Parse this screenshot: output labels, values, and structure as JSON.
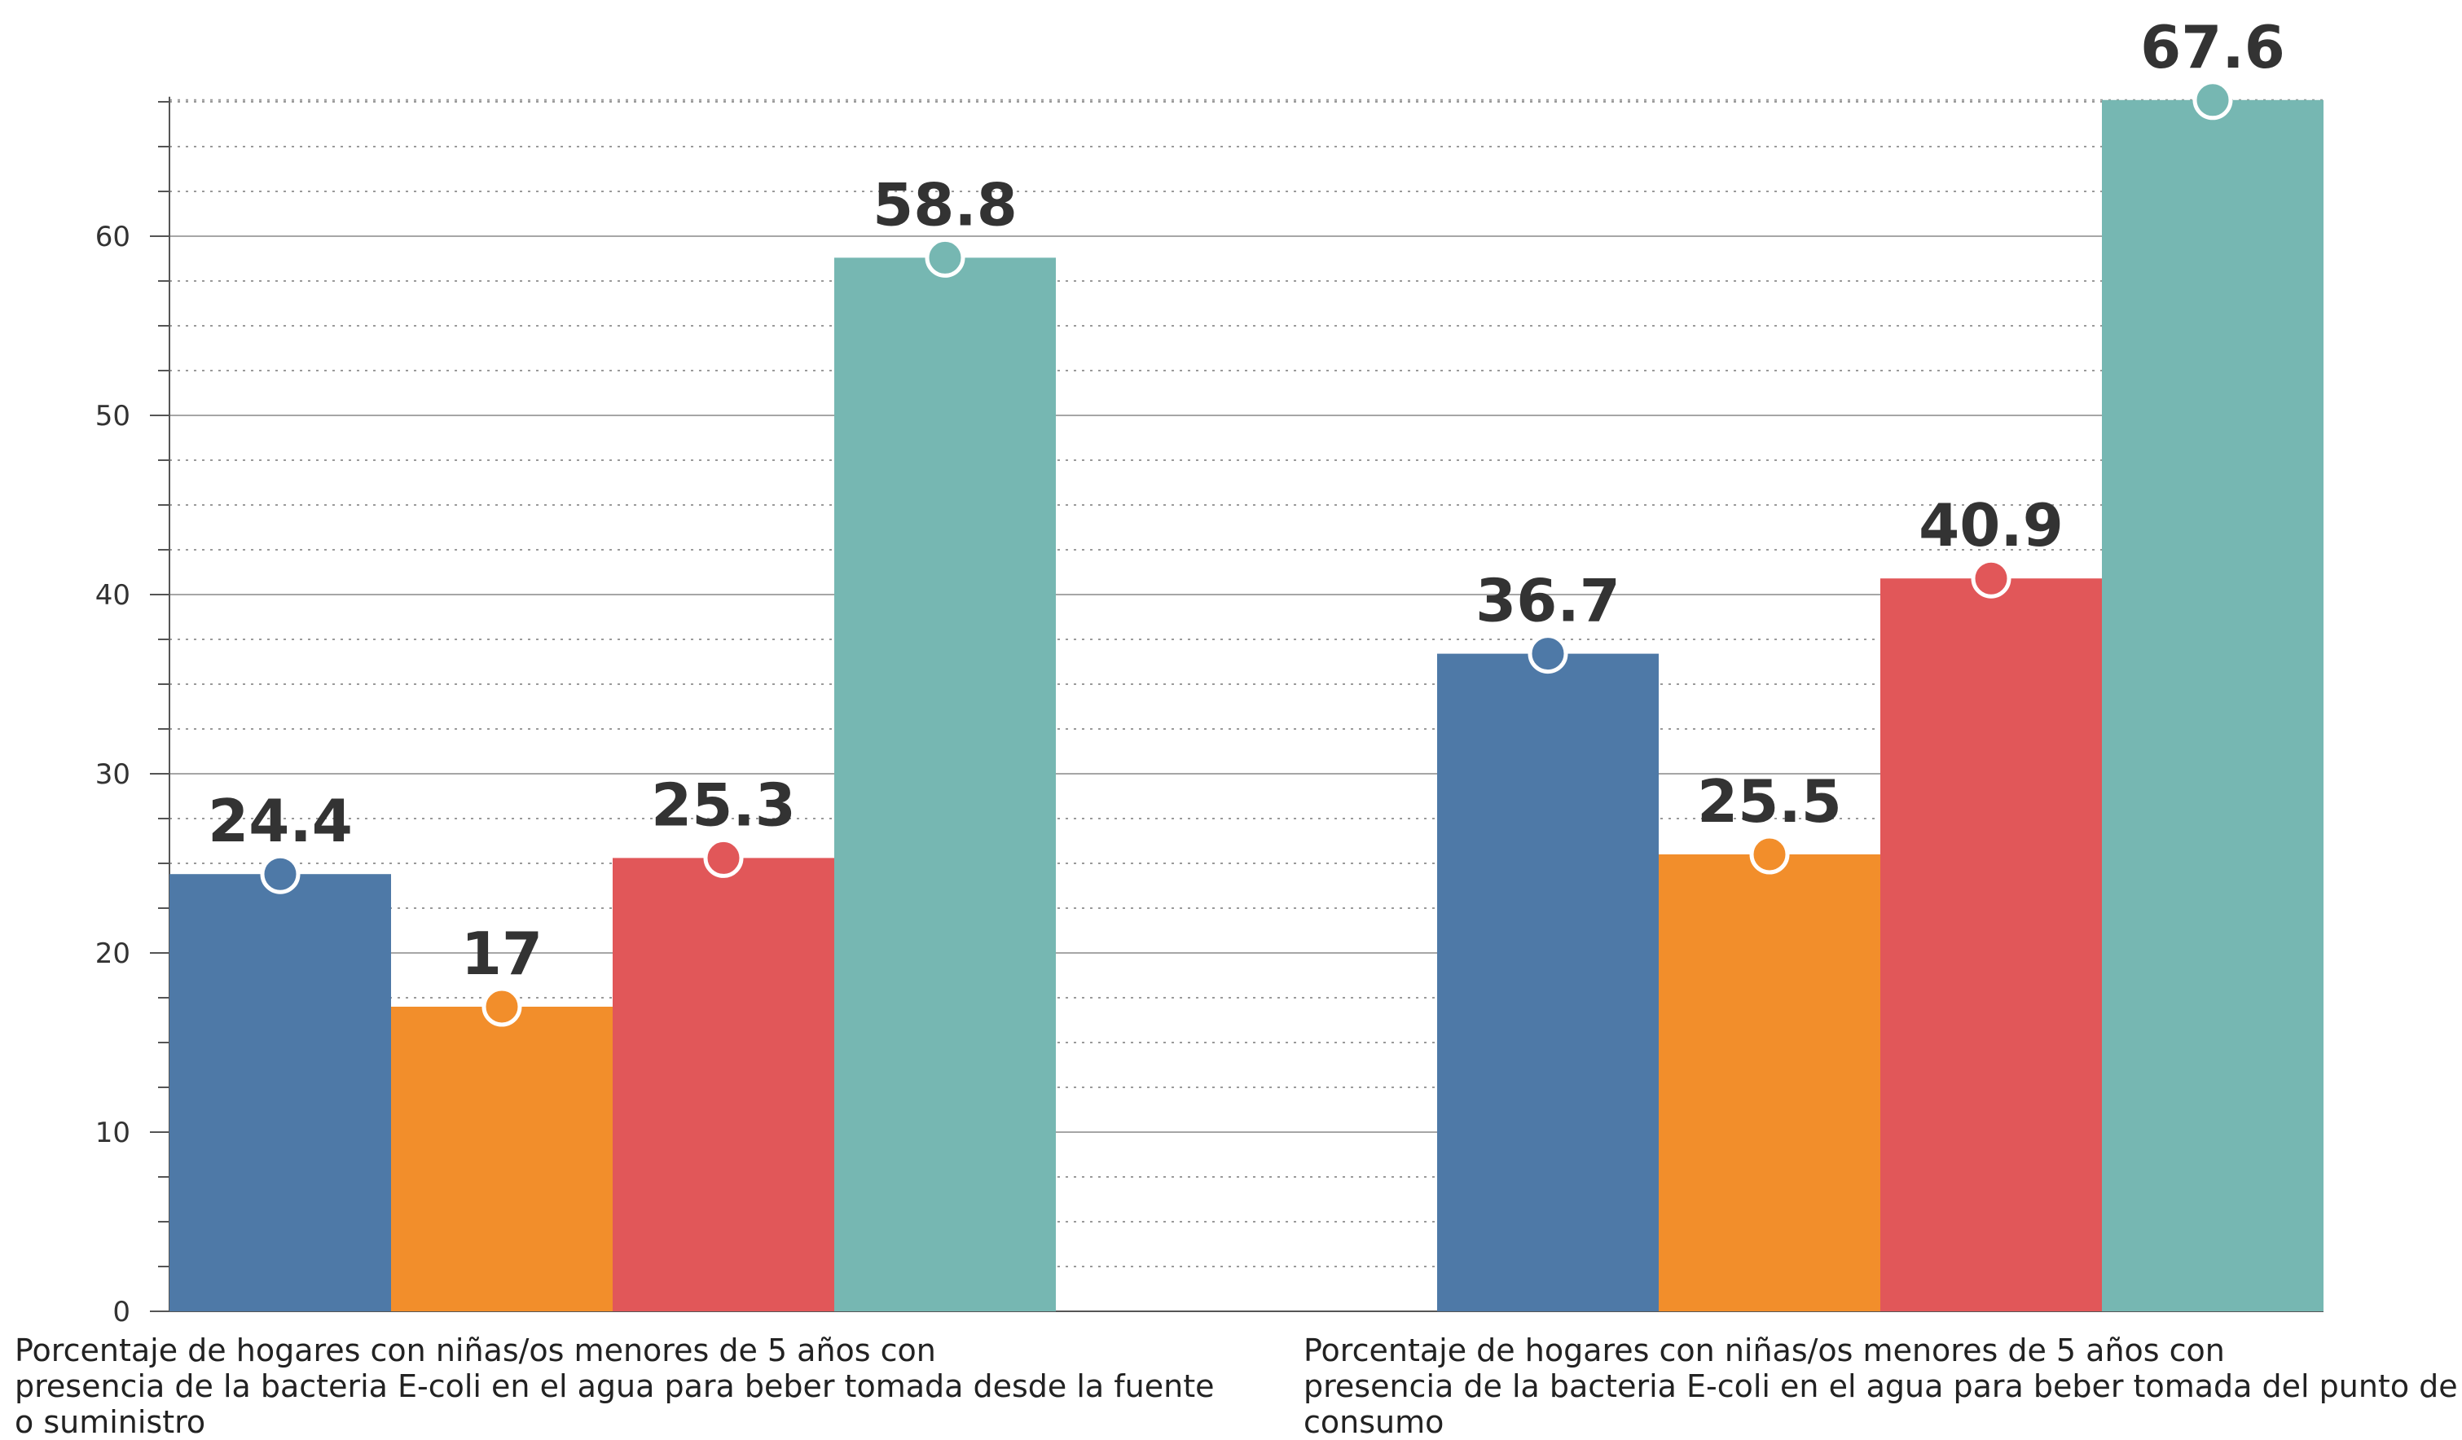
{
  "chart_data": {
    "type": "bar",
    "categories": [
      "Porcentaje de hogares con niñas/os menores de 5 años con\n presencia de la bacteria E-coli en el agua para beber tomada desde la fuente\n o suministro",
      "Porcentaje de hogares con niñas/os menores de 5 años con\n presencia de la bacteria E-coli en el agua para beber tomada del punto de\n consumo"
    ],
    "series": [
      {
        "color": "#4e79a7",
        "values": [
          24.4,
          36.7
        ],
        "labels": [
          "24.4",
          "36.7"
        ]
      },
      {
        "color": "#f28e2b",
        "values": [
          17,
          25.5
        ],
        "labels": [
          "17",
          "25.5"
        ]
      },
      {
        "color": "#e15759",
        "values": [
          25.3,
          40.9
        ],
        "labels": [
          "25.3",
          "40.9"
        ]
      },
      {
        "color": "#76b7b2",
        "values": [
          58.8,
          67.6
        ],
        "labels": [
          "58.8",
          "67.6"
        ]
      }
    ],
    "yticks": [
      "0",
      "10",
      "20",
      "30",
      "40",
      "50",
      "60"
    ],
    "ylim": [
      0,
      67.6
    ],
    "grid": true,
    "legend": "none"
  }
}
